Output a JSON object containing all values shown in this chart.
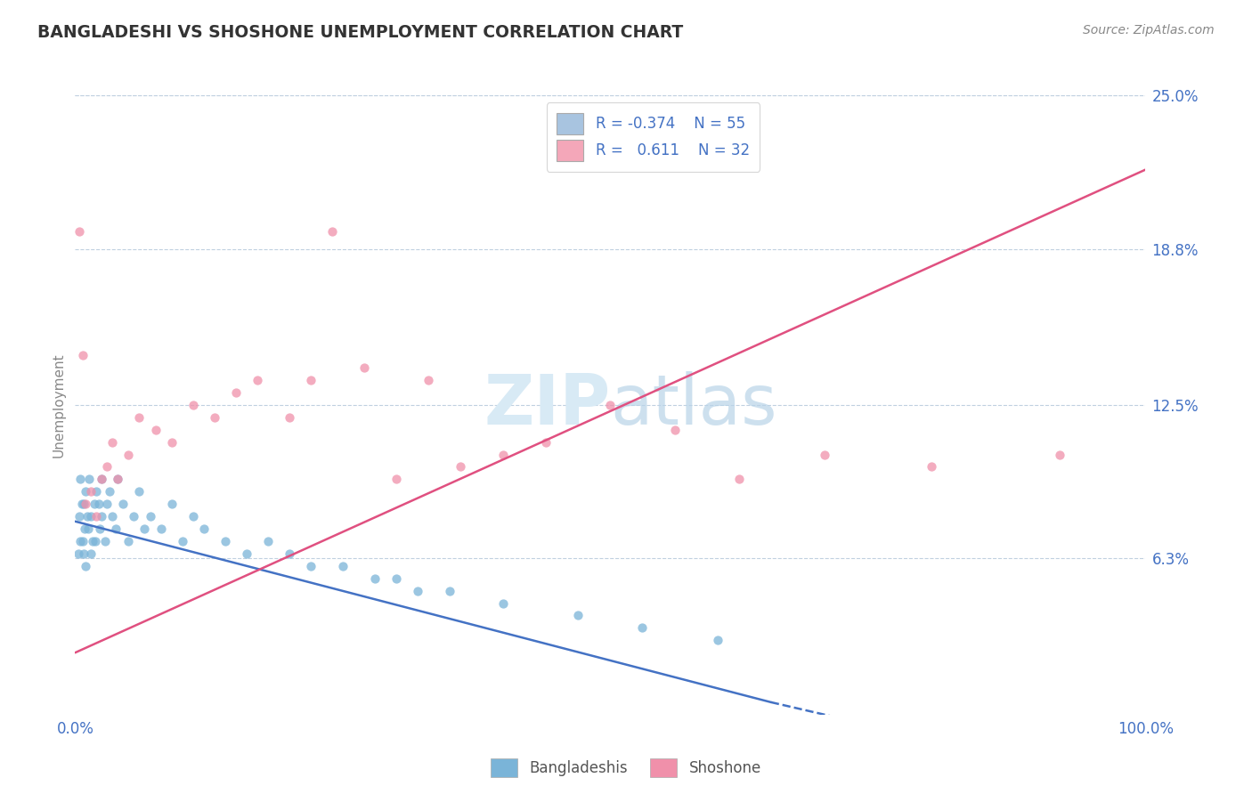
{
  "title": "BANGLADESHI VS SHOSHONE UNEMPLOYMENT CORRELATION CHART",
  "source_text": "Source: ZipAtlas.com",
  "ylabel": "Unemployment",
  "xlim": [
    0,
    100
  ],
  "ylim": [
    0,
    25
  ],
  "ytick_vals": [
    6.3,
    12.5,
    18.8,
    25.0
  ],
  "legend_color1": "#a8c4e0",
  "legend_color2": "#f4a7b9",
  "blue_color": "#7ab4d8",
  "pink_color": "#f090aa",
  "trend_blue_color": "#4472c4",
  "trend_pink_color": "#e05080",
  "watermark_color": "#d8eaf5",
  "title_color": "#333333",
  "axis_label_color": "#4472c4",
  "background_color": "#ffffff",
  "blue_trend_start_x": 0,
  "blue_trend_start_y": 7.8,
  "blue_trend_end_solid_x": 65,
  "blue_trend_end_solid_y": 0.5,
  "blue_trend_end_dash_x": 78,
  "blue_trend_end_dash_y": -0.8,
  "pink_trend_start_x": 0,
  "pink_trend_start_y": 2.5,
  "pink_trend_end_x": 100,
  "pink_trend_end_y": 22.0,
  "bangladeshi_x": [
    0.3,
    0.4,
    0.5,
    0.5,
    0.6,
    0.7,
    0.8,
    0.8,
    0.9,
    1.0,
    1.0,
    1.1,
    1.2,
    1.3,
    1.5,
    1.5,
    1.6,
    1.8,
    1.9,
    2.0,
    2.2,
    2.3,
    2.5,
    2.5,
    2.8,
    3.0,
    3.2,
    3.5,
    3.8,
    4.0,
    4.5,
    5.0,
    5.5,
    6.0,
    6.5,
    7.0,
    8.0,
    9.0,
    10.0,
    11.0,
    12.0,
    14.0,
    16.0,
    18.0,
    20.0,
    22.0,
    25.0,
    28.0,
    30.0,
    32.0,
    35.0,
    40.0,
    47.0,
    53.0,
    60.0
  ],
  "bangladeshi_y": [
    6.5,
    8.0,
    7.0,
    9.5,
    8.5,
    7.0,
    6.5,
    8.5,
    7.5,
    9.0,
    6.0,
    8.0,
    7.5,
    9.5,
    8.0,
    6.5,
    7.0,
    8.5,
    7.0,
    9.0,
    8.5,
    7.5,
    8.0,
    9.5,
    7.0,
    8.5,
    9.0,
    8.0,
    7.5,
    9.5,
    8.5,
    7.0,
    8.0,
    9.0,
    7.5,
    8.0,
    7.5,
    8.5,
    7.0,
    8.0,
    7.5,
    7.0,
    6.5,
    7.0,
    6.5,
    6.0,
    6.0,
    5.5,
    5.5,
    5.0,
    5.0,
    4.5,
    4.0,
    3.5,
    3.0
  ],
  "shoshone_x": [
    0.4,
    0.7,
    1.0,
    1.5,
    2.0,
    2.5,
    3.0,
    3.5,
    4.0,
    5.0,
    6.0,
    7.5,
    9.0,
    11.0,
    13.0,
    15.0,
    17.0,
    20.0,
    22.0,
    24.0,
    27.0,
    30.0,
    33.0,
    36.0,
    40.0,
    44.0,
    50.0,
    56.0,
    62.0,
    70.0,
    80.0,
    92.0
  ],
  "shoshone_y": [
    19.5,
    14.5,
    8.5,
    9.0,
    8.0,
    9.5,
    10.0,
    11.0,
    9.5,
    10.5,
    12.0,
    11.5,
    11.0,
    12.5,
    12.0,
    13.0,
    13.5,
    12.0,
    13.5,
    19.5,
    14.0,
    9.5,
    13.5,
    10.0,
    10.5,
    11.0,
    12.5,
    11.5,
    9.5,
    10.5,
    10.0,
    10.5
  ]
}
